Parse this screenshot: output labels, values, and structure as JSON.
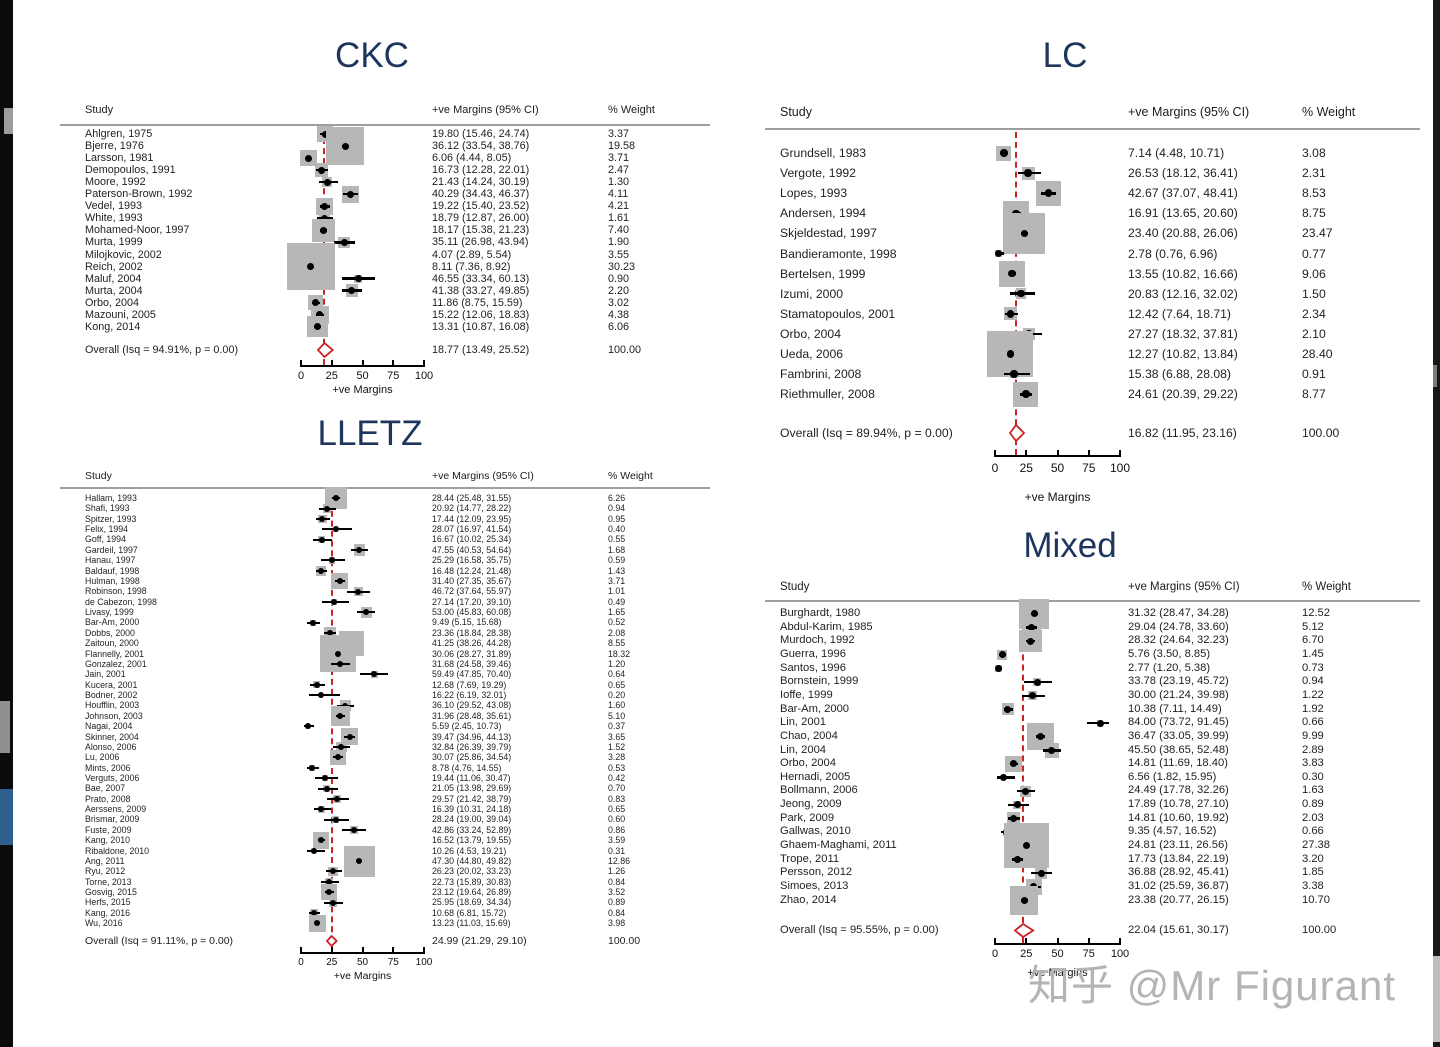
{
  "watermark": {
    "text": "知乎 @Mr Figurant",
    "color": "#b4b4b4"
  },
  "colors": {
    "title": "#1e355e",
    "square": "#b7b7b7",
    "marker": "#000000",
    "overall_red": "#cc2222",
    "rule": "#9f9f9f"
  },
  "chart_data": [
    {
      "id": "ckc",
      "type": "forest",
      "title": "CKC",
      "columns": {
        "study": "Study",
        "ci": "+ve Margins (95% CI)",
        "weight": "% Weight"
      },
      "xlabel": "+ve Margins",
      "xlim": [
        0,
        100
      ],
      "x_ticks": [
        "0",
        "25",
        "50",
        "75",
        "100"
      ],
      "legend": "none",
      "grid": false,
      "overall": {
        "label": "Overall (Isq = 94.91%, p = 0.00)",
        "est": 18.77,
        "lo": 13.49,
        "hi": 25.52,
        "weight": 100.0
      },
      "studies": [
        {
          "label": "Ahlgren, 1975",
          "est": 19.8,
          "lo": 15.46,
          "hi": 24.74,
          "weight": 3.37
        },
        {
          "label": "Bjerre, 1976",
          "est": 36.12,
          "lo": 33.54,
          "hi": 38.76,
          "weight": 19.58
        },
        {
          "label": "Larsson, 1981",
          "est": 6.06,
          "lo": 4.44,
          "hi": 8.05,
          "weight": 3.71
        },
        {
          "label": "Demopoulos, 1991",
          "est": 16.73,
          "lo": 12.28,
          "hi": 22.01,
          "weight": 2.47
        },
        {
          "label": "Moore, 1992",
          "est": 21.43,
          "lo": 14.24,
          "hi": 30.19,
          "weight": 1.3
        },
        {
          "label": "Paterson-Brown, 1992",
          "est": 40.29,
          "lo": 34.43,
          "hi": 46.37,
          "weight": 4.11
        },
        {
          "label": "Vedel, 1993",
          "est": 19.22,
          "lo": 15.4,
          "hi": 23.52,
          "weight": 4.21
        },
        {
          "label": "White, 1993",
          "est": 18.79,
          "lo": 12.87,
          "hi": 26.0,
          "weight": 1.61
        },
        {
          "label": "Mohamed-Noor, 1997",
          "est": 18.17,
          "lo": 15.38,
          "hi": 21.23,
          "weight": 7.4
        },
        {
          "label": "Murta, 1999",
          "est": 35.11,
          "lo": 26.98,
          "hi": 43.94,
          "weight": 1.9
        },
        {
          "label": "Milojkovic, 2002",
          "est": 4.07,
          "lo": 2.89,
          "hi": 5.54,
          "weight": 3.55
        },
        {
          "label": "Reich, 2002",
          "est": 8.11,
          "lo": 7.36,
          "hi": 8.92,
          "weight": 30.23
        },
        {
          "label": "Maluf, 2004",
          "est": 46.55,
          "lo": 33.34,
          "hi": 60.13,
          "weight": 0.9
        },
        {
          "label": "Murta, 2004",
          "est": 41.38,
          "lo": 33.27,
          "hi": 49.85,
          "weight": 2.2
        },
        {
          "label": "Orbo, 2004",
          "est": 11.86,
          "lo": 8.75,
          "hi": 15.59,
          "weight": 3.02
        },
        {
          "label": "Mazouni, 2005",
          "est": 15.22,
          "lo": 12.06,
          "hi": 18.83,
          "weight": 4.38
        },
        {
          "label": "Kong, 2014",
          "est": 13.31,
          "lo": 10.87,
          "hi": 16.08,
          "weight": 6.06
        }
      ]
    },
    {
      "id": "lc",
      "type": "forest",
      "title": "LC",
      "columns": {
        "study": "Study",
        "ci": "+ve Margins (95% CI)",
        "weight": "% Weight"
      },
      "xlabel": "+ve Margins",
      "xlim": [
        0,
        100
      ],
      "x_ticks": [
        "0",
        "25",
        "50",
        "75",
        "100"
      ],
      "legend": "none",
      "grid": false,
      "overall": {
        "label": "Overall (Isq = 89.94%, p = 0.00)",
        "est": 16.82,
        "lo": 11.95,
        "hi": 23.16,
        "weight": 100.0
      },
      "studies": [
        {
          "label": "Grundsell, 1983",
          "est": 7.14,
          "lo": 4.48,
          "hi": 10.71,
          "weight": 3.08
        },
        {
          "label": "Vergote, 1992",
          "est": 26.53,
          "lo": 18.12,
          "hi": 36.41,
          "weight": 2.31
        },
        {
          "label": "Lopes, 1993",
          "est": 42.67,
          "lo": 37.07,
          "hi": 48.41,
          "weight": 8.53
        },
        {
          "label": "Andersen, 1994",
          "est": 16.91,
          "lo": 13.65,
          "hi": 20.6,
          "weight": 8.75
        },
        {
          "label": "Skjeldestad, 1997",
          "est": 23.4,
          "lo": 20.88,
          "hi": 26.06,
          "weight": 23.47
        },
        {
          "label": "Bandieramonte, 1998",
          "est": 2.78,
          "lo": 0.76,
          "hi": 6.96,
          "weight": 0.77
        },
        {
          "label": "Bertelsen, 1999",
          "est": 13.55,
          "lo": 10.82,
          "hi": 16.66,
          "weight": 9.06
        },
        {
          "label": "Izumi, 2000",
          "est": 20.83,
          "lo": 12.16,
          "hi": 32.02,
          "weight": 1.5
        },
        {
          "label": "Stamatopoulos, 2001",
          "est": 12.42,
          "lo": 7.64,
          "hi": 18.71,
          "weight": 2.34
        },
        {
          "label": "Orbo, 2004",
          "est": 27.27,
          "lo": 18.32,
          "hi": 37.81,
          "weight": 2.1
        },
        {
          "label": "Ueda, 2006",
          "est": 12.27,
          "lo": 10.82,
          "hi": 13.84,
          "weight": 28.4
        },
        {
          "label": "Fambrini, 2008",
          "est": 15.38,
          "lo": 6.88,
          "hi": 28.08,
          "weight": 0.91
        },
        {
          "label": "Riethmuller, 2008",
          "est": 24.61,
          "lo": 20.39,
          "hi": 29.22,
          "weight": 8.77
        }
      ]
    },
    {
      "id": "lletz",
      "type": "forest",
      "title": "LLETZ",
      "columns": {
        "study": "Study",
        "ci": "+ve Margins (95% CI)",
        "weight": "% Weight"
      },
      "xlabel": "+ve Margins",
      "xlim": [
        0,
        100
      ],
      "x_ticks": [
        "0",
        "25",
        "50",
        "75",
        "100"
      ],
      "legend": "none",
      "grid": false,
      "overall": {
        "label": "Overall (Isq = 91.11%, p = 0.00)",
        "est": 24.99,
        "lo": 21.29,
        "hi": 29.1,
        "weight": 100.0
      },
      "studies": [
        {
          "label": "Hallam, 1993",
          "est": 28.44,
          "lo": 25.48,
          "hi": 31.55,
          "weight": 6.26
        },
        {
          "label": "Shafi, 1993",
          "est": 20.92,
          "lo": 14.77,
          "hi": 28.22,
          "weight": 0.94
        },
        {
          "label": "Spitzer, 1993",
          "est": 17.44,
          "lo": 12.09,
          "hi": 23.95,
          "weight": 0.95
        },
        {
          "label": "Felix, 1994",
          "est": 28.07,
          "lo": 16.97,
          "hi": 41.54,
          "weight": 0.4
        },
        {
          "label": "Goff, 1994",
          "est": 16.67,
          "lo": 10.02,
          "hi": 25.34,
          "weight": 0.55
        },
        {
          "label": "Gardeil, 1997",
          "est": 47.55,
          "lo": 40.53,
          "hi": 54.64,
          "weight": 1.68
        },
        {
          "label": "Hanau, 1997",
          "est": 25.29,
          "lo": 16.58,
          "hi": 35.75,
          "weight": 0.59
        },
        {
          "label": "Baldauf, 1998",
          "est": 16.48,
          "lo": 12.24,
          "hi": 21.48,
          "weight": 1.43
        },
        {
          "label": "Hulman, 1998",
          "est": 31.4,
          "lo": 27.35,
          "hi": 35.67,
          "weight": 3.71
        },
        {
          "label": "Robinson, 1998",
          "est": 46.72,
          "lo": 37.64,
          "hi": 55.97,
          "weight": 1.01
        },
        {
          "label": "de Cabezon, 1998",
          "est": 27.14,
          "lo": 17.2,
          "hi": 39.1,
          "weight": 0.49
        },
        {
          "label": "Livasy, 1999",
          "est": 53.0,
          "lo": 45.83,
          "hi": 60.08,
          "weight": 1.65
        },
        {
          "label": "Bar-Am, 2000",
          "est": 9.49,
          "lo": 5.15,
          "hi": 15.68,
          "weight": 0.52
        },
        {
          "label": "Dobbs, 2000",
          "est": 23.36,
          "lo": 18.84,
          "hi": 28.38,
          "weight": 2.08
        },
        {
          "label": "Zaitoun, 2000",
          "est": 41.25,
          "lo": 38.26,
          "hi": 44.28,
          "weight": 8.55
        },
        {
          "label": "Flannelly, 2001",
          "est": 30.06,
          "lo": 28.27,
          "hi": 31.89,
          "weight": 18.32
        },
        {
          "label": "Gonzalez, 2001",
          "est": 31.68,
          "lo": 24.58,
          "hi": 39.46,
          "weight": 1.2
        },
        {
          "label": "Jain, 2001",
          "est": 59.49,
          "lo": 47.85,
          "hi": 70.4,
          "weight": 0.64
        },
        {
          "label": "Kucera, 2001",
          "est": 12.68,
          "lo": 7.69,
          "hi": 19.29,
          "weight": 0.65
        },
        {
          "label": "Bodner, 2002",
          "est": 16.22,
          "lo": 6.19,
          "hi": 32.01,
          "weight": 0.2
        },
        {
          "label": "Houfflin, 2003",
          "est": 36.1,
          "lo": 29.52,
          "hi": 43.08,
          "weight": 1.6
        },
        {
          "label": "Johnson, 2003",
          "est": 31.96,
          "lo": 28.48,
          "hi": 35.61,
          "weight": 5.1
        },
        {
          "label": "Nagai, 2004",
          "est": 5.59,
          "lo": 2.45,
          "hi": 10.73,
          "weight": 0.37
        },
        {
          "label": "Skinner, 2004",
          "est": 39.47,
          "lo": 34.96,
          "hi": 44.13,
          "weight": 3.65
        },
        {
          "label": "Alonso, 2006",
          "est": 32.84,
          "lo": 26.39,
          "hi": 39.79,
          "weight": 1.52
        },
        {
          "label": "Lu, 2006",
          "est": 30.07,
          "lo": 25.86,
          "hi": 34.54,
          "weight": 3.28
        },
        {
          "label": "Mints, 2006",
          "est": 8.78,
          "lo": 4.76,
          "hi": 14.55,
          "weight": 0.53
        },
        {
          "label": "Verguts, 2006",
          "est": 19.44,
          "lo": 11.06,
          "hi": 30.47,
          "weight": 0.42
        },
        {
          "label": "Bae, 2007",
          "est": 21.05,
          "lo": 13.98,
          "hi": 29.69,
          "weight": 0.7
        },
        {
          "label": "Prato, 2008",
          "est": 29.57,
          "lo": 21.42,
          "hi": 38.79,
          "weight": 0.83
        },
        {
          "label": "Aerssens, 2009",
          "est": 16.39,
          "lo": 10.31,
          "hi": 24.18,
          "weight": 0.65
        },
        {
          "label": "Brismar, 2009",
          "est": 28.24,
          "lo": 19.0,
          "hi": 39.04,
          "weight": 0.6
        },
        {
          "label": "Fuste, 2009",
          "est": 42.86,
          "lo": 33.24,
          "hi": 52.89,
          "weight": 0.86
        },
        {
          "label": "Kang, 2010",
          "est": 16.52,
          "lo": 13.79,
          "hi": 19.55,
          "weight": 3.59
        },
        {
          "label": "Ribaldone, 2010",
          "est": 10.26,
          "lo": 4.53,
          "hi": 19.21,
          "weight": 0.31
        },
        {
          "label": "Ang, 2011",
          "est": 47.3,
          "lo": 44.8,
          "hi": 49.82,
          "weight": 12.86
        },
        {
          "label": "Ryu, 2012",
          "est": 26.23,
          "lo": 20.02,
          "hi": 33.23,
          "weight": 1.26
        },
        {
          "label": "Torne, 2013",
          "est": 22.73,
          "lo": 15.89,
          "hi": 30.83,
          "weight": 0.84
        },
        {
          "label": "Gosvig, 2015",
          "est": 23.12,
          "lo": 19.64,
          "hi": 26.89,
          "weight": 3.52
        },
        {
          "label": "Herfs, 2015",
          "est": 25.95,
          "lo": 18.69,
          "hi": 34.34,
          "weight": 0.89
        },
        {
          "label": "Kang, 2016",
          "est": 10.68,
          "lo": 6.81,
          "hi": 15.72,
          "weight": 0.84
        },
        {
          "label": "Wu, 2016",
          "est": 13.23,
          "lo": 11.03,
          "hi": 15.69,
          "weight": 3.98
        }
      ]
    },
    {
      "id": "mixed",
      "type": "forest",
      "title": "Mixed",
      "columns": {
        "study": "Study",
        "ci": "+ve Margins (95% CI)",
        "weight": "% Weight"
      },
      "xlabel": "+ve Margins",
      "xlim": [
        0,
        100
      ],
      "x_ticks": [
        "0",
        "25",
        "50",
        "75",
        "100"
      ],
      "legend": "none",
      "grid": false,
      "overall": {
        "label": "Overall (Isq = 95.55%, p = 0.00)",
        "est": 22.04,
        "lo": 15.61,
        "hi": 30.17,
        "weight": 100.0
      },
      "studies": [
        {
          "label": "Burghardt, 1980",
          "est": 31.32,
          "lo": 28.47,
          "hi": 34.28,
          "weight": 12.52
        },
        {
          "label": "Abdul-Karim, 1985",
          "est": 29.04,
          "lo": 24.78,
          "hi": 33.6,
          "weight": 5.12
        },
        {
          "label": "Murdoch, 1992",
          "est": 28.32,
          "lo": 24.64,
          "hi": 32.23,
          "weight": 6.7
        },
        {
          "label": "Guerra, 1996",
          "est": 5.76,
          "lo": 3.5,
          "hi": 8.85,
          "weight": 1.45
        },
        {
          "label": "Santos, 1996",
          "est": 2.77,
          "lo": 1.2,
          "hi": 5.38,
          "weight": 0.73
        },
        {
          "label": "Bornstein, 1999",
          "est": 33.78,
          "lo": 23.19,
          "hi": 45.72,
          "weight": 0.94
        },
        {
          "label": "Ioffe, 1999",
          "est": 30.0,
          "lo": 21.24,
          "hi": 39.98,
          "weight": 1.22
        },
        {
          "label": "Bar-Am, 2000",
          "est": 10.38,
          "lo": 7.11,
          "hi": 14.49,
          "weight": 1.92
        },
        {
          "label": "Lin, 2001",
          "est": 84.0,
          "lo": 73.72,
          "hi": 91.45,
          "weight": 0.66
        },
        {
          "label": "Chao, 2004",
          "est": 36.47,
          "lo": 33.05,
          "hi": 39.99,
          "weight": 9.99
        },
        {
          "label": "Lin, 2004",
          "est": 45.5,
          "lo": 38.65,
          "hi": 52.48,
          "weight": 2.89
        },
        {
          "label": "Orbo, 2004",
          "est": 14.81,
          "lo": 11.69,
          "hi": 18.4,
          "weight": 3.83
        },
        {
          "label": "Hernadi, 2005",
          "est": 6.56,
          "lo": 1.82,
          "hi": 15.95,
          "weight": 0.3
        },
        {
          "label": "Bollmann, 2006",
          "est": 24.49,
          "lo": 17.78,
          "hi": 32.26,
          "weight": 1.63
        },
        {
          "label": "Jeong, 2009",
          "est": 17.89,
          "lo": 10.78,
          "hi": 27.1,
          "weight": 0.89
        },
        {
          "label": "Park, 2009",
          "est": 14.81,
          "lo": 10.6,
          "hi": 19.92,
          "weight": 2.03
        },
        {
          "label": "Gallwas, 2010",
          "est": 9.35,
          "lo": 4.57,
          "hi": 16.52,
          "weight": 0.66
        },
        {
          "label": "Ghaem-Maghami, 2011",
          "est": 24.81,
          "lo": 23.11,
          "hi": 26.56,
          "weight": 27.38
        },
        {
          "label": "Trope, 2011",
          "est": 17.73,
          "lo": 13.84,
          "hi": 22.19,
          "weight": 3.2
        },
        {
          "label": "Persson, 2012",
          "est": 36.88,
          "lo": 28.92,
          "hi": 45.41,
          "weight": 1.85
        },
        {
          "label": "Simoes, 2013",
          "est": 31.02,
          "lo": 25.59,
          "hi": 36.87,
          "weight": 3.38
        },
        {
          "label": "Zhao, 2014",
          "est": 23.38,
          "lo": 20.77,
          "hi": 26.15,
          "weight": 10.7
        }
      ]
    }
  ]
}
